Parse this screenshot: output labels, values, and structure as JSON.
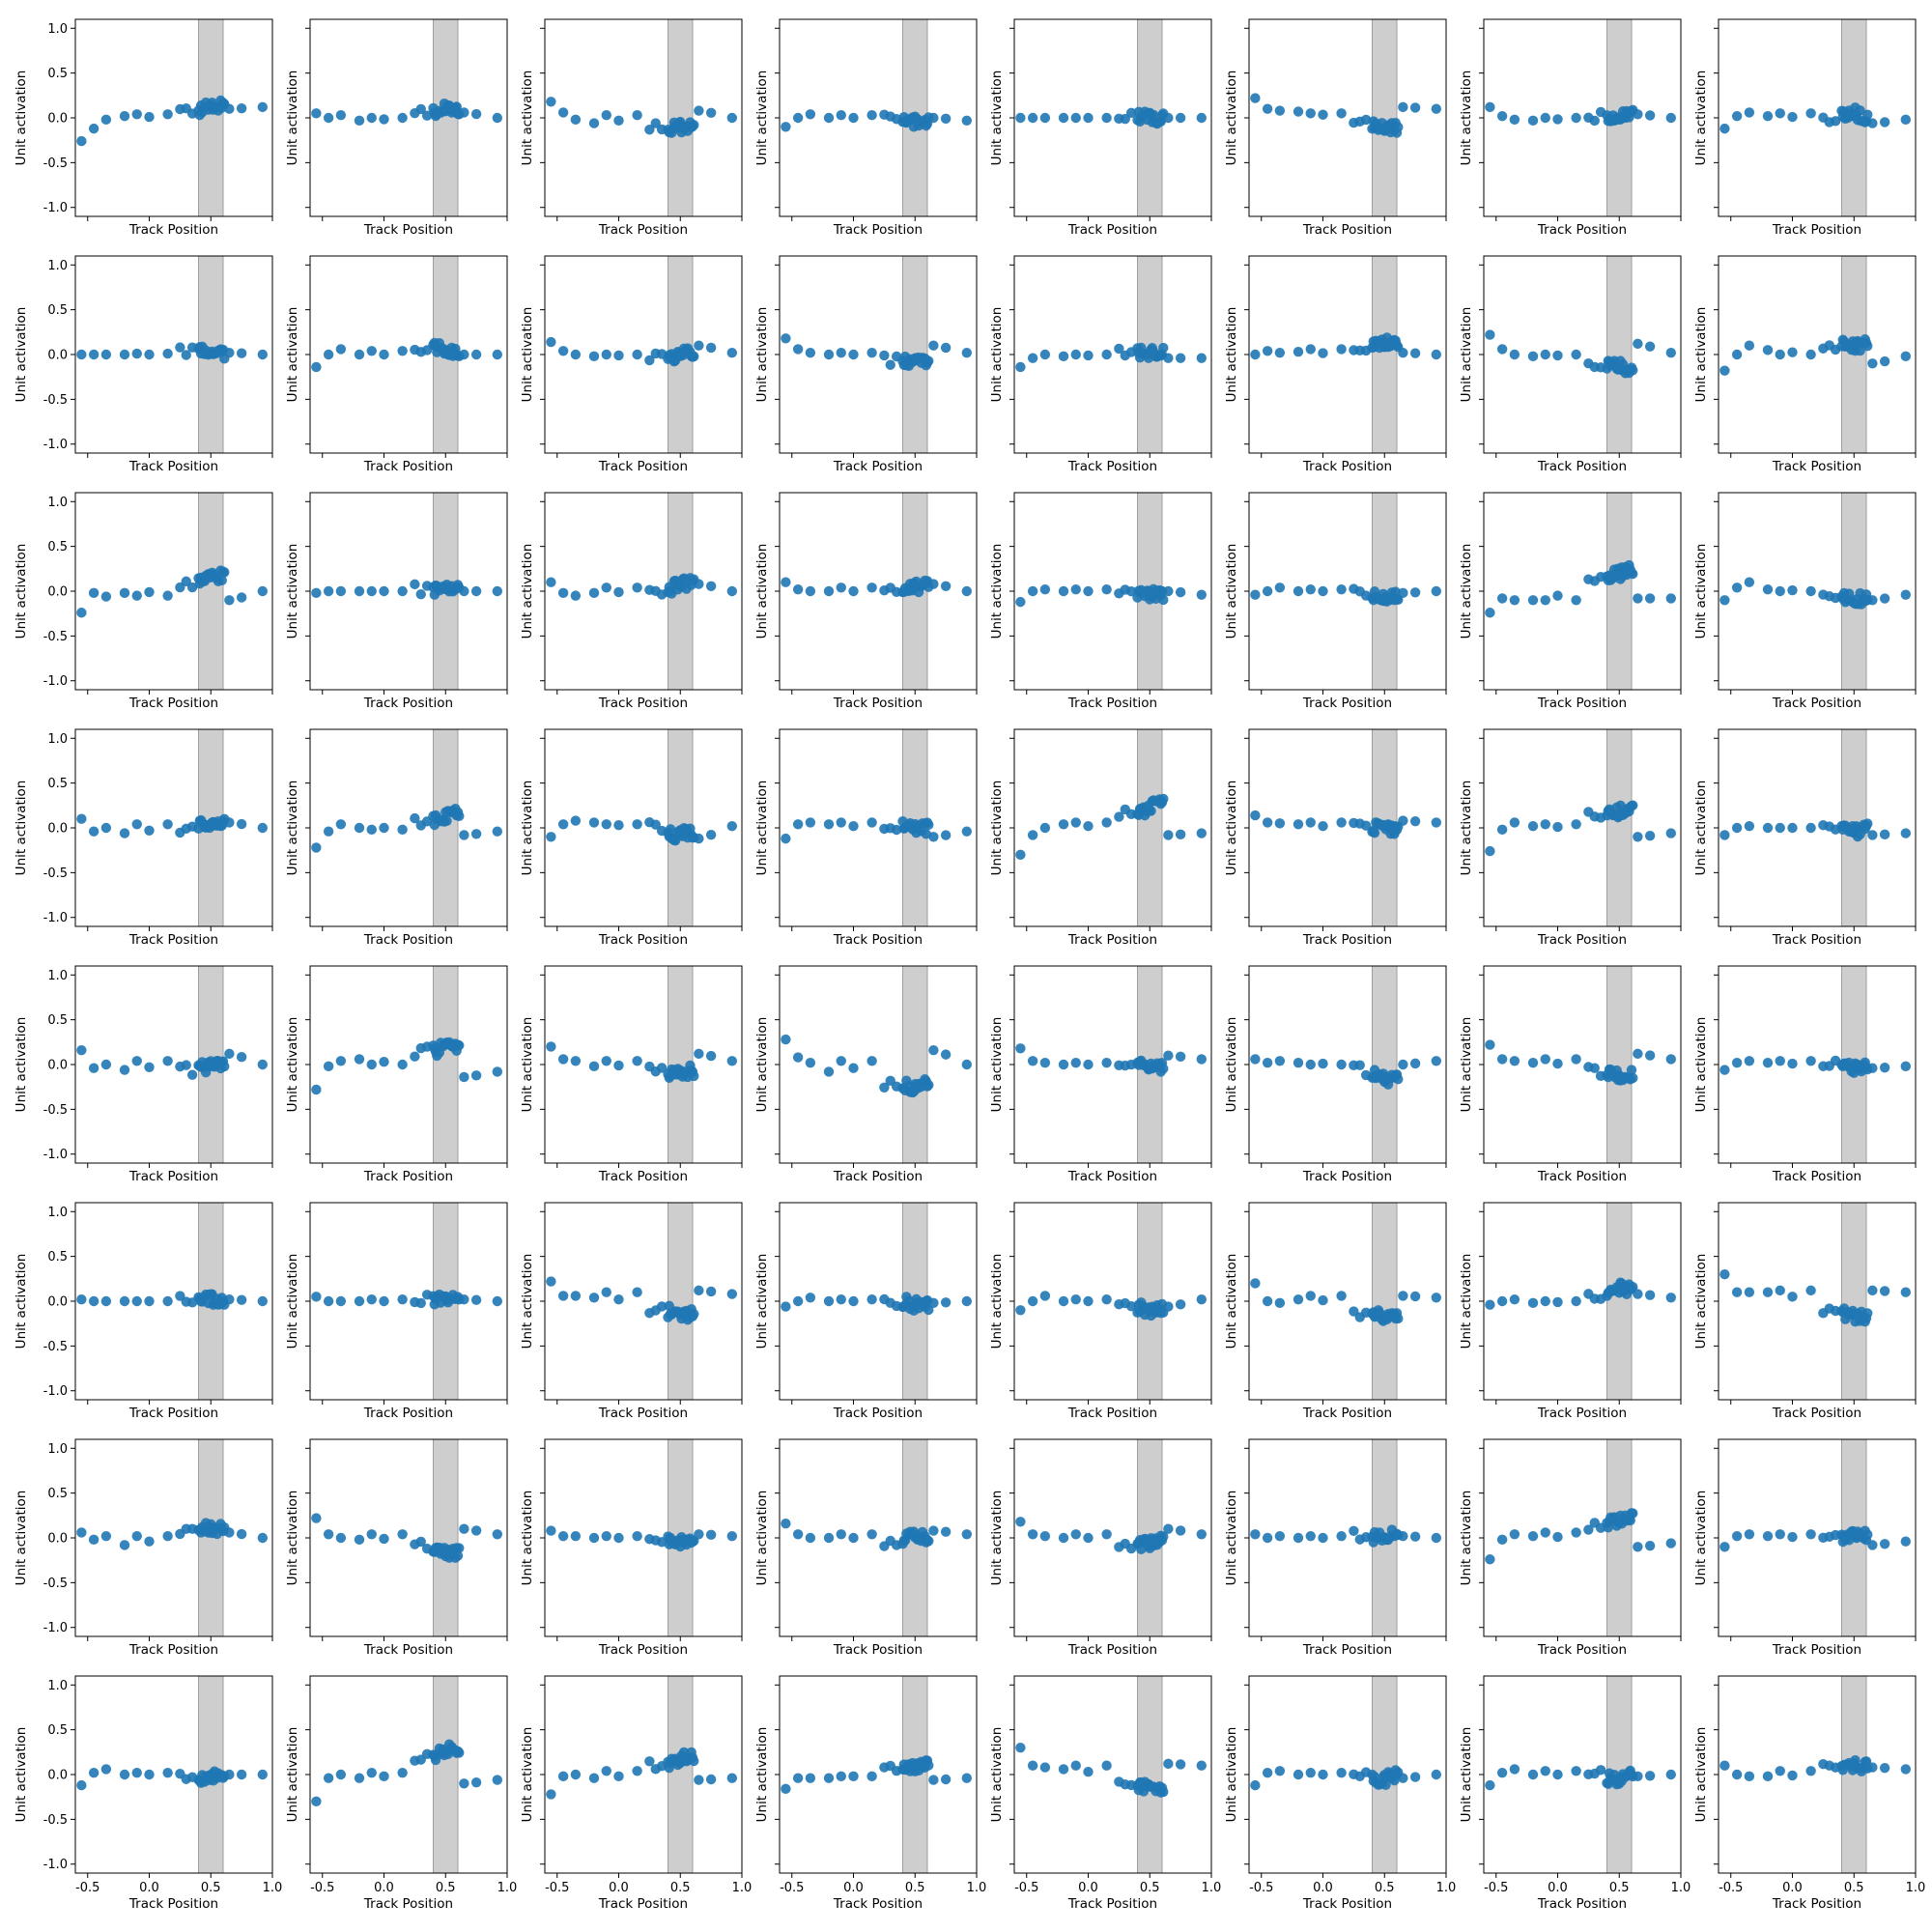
{
  "chart_data": {
    "type": "scatter",
    "grid": {
      "rows": 8,
      "cols": 8
    },
    "xlabel": "Track Position",
    "ylabel": "Unit activation",
    "xlim": [
      -0.6,
      1.0
    ],
    "ylim": [
      -1.1,
      1.1
    ],
    "xticks": [
      "-0.5",
      "0.0",
      "0.5",
      "1.0"
    ],
    "xtick_values": [
      -0.5,
      0.0,
      0.5,
      1.0
    ],
    "yticks": [
      "-1.0",
      "-0.5",
      "0.0",
      "0.5",
      "1.0"
    ],
    "ytick_values": [
      -1.0,
      -0.5,
      0.0,
      0.5,
      1.0
    ],
    "shaded_band": [
      0.4,
      0.6
    ],
    "point_color": "#1f77b4",
    "band_color": "#bdbdbd",
    "x_positions": [
      -0.55,
      -0.45,
      -0.35,
      -0.2,
      -0.1,
      0.0,
      0.15,
      0.25,
      0.3,
      0.35,
      0.4,
      0.42,
      0.45,
      0.48,
      0.5,
      0.52,
      0.55,
      0.58,
      0.6,
      0.65,
      0.75,
      0.92
    ],
    "panel_profiles": [
      [
        -0.26,
        -0.12,
        -0.02,
        0.02,
        0.04,
        0.06,
        0.09,
        0.12,
        0.14,
        0.15,
        0.1,
        0.12
      ],
      [
        0.05,
        0.0,
        0.03,
        -0.03,
        0.0,
        0.06,
        0.08,
        0.1,
        0.09,
        0.08,
        0.06,
        0.0
      ],
      [
        0.18,
        0.06,
        -0.02,
        -0.06,
        0.03,
        -0.08,
        -0.12,
        -0.1,
        -0.08,
        -0.1,
        0.08,
        0.0
      ],
      [
        -0.1,
        0.0,
        0.04,
        0.0,
        0.03,
        0.0,
        -0.02,
        -0.04,
        -0.03,
        -0.05,
        0.0,
        -0.03
      ],
      [
        0.0,
        0.0,
        0.0,
        0.0,
        0.0,
        0.0,
        0.0,
        0.0,
        0.0,
        0.0,
        0.0,
        0.0
      ],
      [
        0.22,
        0.1,
        0.08,
        0.07,
        0.05,
        -0.05,
        -0.08,
        -0.1,
        -0.11,
        -0.12,
        0.12,
        0.1
      ],
      [
        0.12,
        0.02,
        -0.02,
        -0.03,
        0.0,
        0.02,
        0.0,
        0.02,
        0.04,
        0.05,
        0.04,
        0.0
      ],
      [
        -0.12,
        0.02,
        0.06,
        0.02,
        0.05,
        0.0,
        0.04,
        0.05,
        0.03,
        0.0,
        -0.06,
        -0.02
      ],
      [
        0.0,
        0.0,
        0.0,
        0.0,
        0.01,
        0.02,
        0.02,
        0.02,
        0.02,
        0.02,
        0.02,
        0.0
      ],
      [
        -0.14,
        0.0,
        0.06,
        0.0,
        0.04,
        0.06,
        0.08,
        0.07,
        0.05,
        0.02,
        0.0,
        0.0
      ],
      [
        0.14,
        0.04,
        0.0,
        -0.02,
        0.0,
        -0.02,
        -0.04,
        -0.02,
        0.0,
        0.0,
        0.1,
        0.02
      ],
      [
        0.18,
        0.06,
        0.02,
        0.0,
        0.02,
        -0.06,
        -0.07,
        -0.08,
        -0.08,
        -0.08,
        0.1,
        0.02
      ],
      [
        -0.14,
        -0.04,
        0.0,
        -0.02,
        0.0,
        0.02,
        0.02,
        0.02,
        0.03,
        0.03,
        -0.04,
        -0.04
      ],
      [
        0.0,
        0.04,
        0.02,
        0.03,
        0.06,
        0.1,
        0.12,
        0.14,
        0.14,
        0.15,
        0.02,
        0.0
      ],
      [
        0.22,
        0.06,
        0.0,
        -0.02,
        0.0,
        -0.1,
        -0.12,
        -0.14,
        -0.16,
        -0.15,
        0.12,
        0.02
      ],
      [
        -0.18,
        0.0,
        0.1,
        0.05,
        0.0,
        0.08,
        0.1,
        0.1,
        0.1,
        0.1,
        -0.1,
        -0.02
      ],
      [
        -0.24,
        -0.02,
        -0.06,
        -0.02,
        -0.05,
        0.1,
        0.12,
        0.14,
        0.16,
        0.18,
        -0.1,
        0.0
      ],
      [
        -0.02,
        0.0,
        0.0,
        0.0,
        0.0,
        0.02,
        0.02,
        0.02,
        0.02,
        0.02,
        0.0,
        0.0
      ],
      [
        0.1,
        -0.02,
        -0.05,
        -0.02,
        0.04,
        -0.02,
        0.04,
        0.06,
        0.08,
        0.1,
        0.08,
        0.0
      ],
      [
        0.1,
        0.02,
        0.0,
        0.0,
        0.04,
        0.02,
        0.04,
        0.06,
        0.05,
        0.06,
        0.08,
        0.0
      ],
      [
        -0.12,
        0.0,
        0.02,
        0.0,
        0.02,
        -0.02,
        -0.04,
        -0.04,
        -0.04,
        -0.03,
        0.0,
        -0.04
      ],
      [
        -0.04,
        0.0,
        0.04,
        0.0,
        0.02,
        -0.02,
        -0.04,
        -0.06,
        -0.07,
        -0.06,
        -0.02,
        0.0
      ],
      [
        -0.24,
        -0.08,
        -0.1,
        -0.1,
        -0.1,
        0.1,
        0.16,
        0.2,
        0.22,
        0.24,
        -0.08,
        -0.08
      ],
      [
        -0.1,
        0.04,
        0.1,
        0.02,
        0.0,
        -0.02,
        -0.06,
        -0.08,
        -0.08,
        -0.06,
        -0.1,
        -0.04
      ],
      [
        0.1,
        -0.04,
        0.0,
        -0.06,
        0.04,
        -0.02,
        0.04,
        0.06,
        0.06,
        0.06,
        0.06,
        0.0
      ],
      [
        -0.22,
        -0.04,
        0.04,
        0.0,
        -0.02,
        0.08,
        0.1,
        0.12,
        0.14,
        0.16,
        -0.08,
        -0.04
      ],
      [
        -0.1,
        0.04,
        0.08,
        0.06,
        0.04,
        0.02,
        -0.06,
        -0.08,
        -0.07,
        -0.06,
        -0.12,
        0.02
      ],
      [
        -0.12,
        0.04,
        0.06,
        0.04,
        0.06,
        0.02,
        0.02,
        0.0,
        0.0,
        0.0,
        -0.1,
        -0.04
      ],
      [
        -0.3,
        -0.08,
        0.0,
        0.04,
        0.06,
        0.16,
        0.18,
        0.2,
        0.24,
        0.26,
        -0.08,
        -0.06
      ],
      [
        0.14,
        0.06,
        0.05,
        0.04,
        0.06,
        0.0,
        0.0,
        0.0,
        -0.02,
        -0.01,
        0.08,
        0.06
      ],
      [
        -0.26,
        -0.02,
        0.06,
        0.02,
        0.04,
        0.12,
        0.16,
        0.18,
        0.2,
        0.2,
        -0.1,
        -0.06
      ],
      [
        -0.08,
        0.0,
        0.02,
        0.0,
        0.0,
        0.0,
        -0.02,
        -0.04,
        -0.03,
        -0.02,
        -0.08,
        -0.06
      ],
      [
        0.16,
        -0.04,
        0.0,
        -0.06,
        0.04,
        -0.06,
        -0.04,
        -0.02,
        0.0,
        0.0,
        0.12,
        0.0
      ],
      [
        -0.28,
        -0.02,
        0.04,
        0.06,
        0.0,
        0.14,
        0.16,
        0.18,
        0.2,
        0.22,
        -0.14,
        -0.08
      ],
      [
        0.2,
        0.06,
        0.04,
        -0.02,
        0.04,
        -0.06,
        -0.08,
        -0.1,
        -0.08,
        -0.06,
        0.12,
        0.04
      ],
      [
        0.28,
        0.08,
        0.02,
        -0.08,
        0.04,
        -0.2,
        -0.24,
        -0.26,
        -0.24,
        -0.2,
        0.16,
        0.0
      ],
      [
        0.18,
        0.04,
        0.02,
        0.0,
        0.02,
        -0.02,
        0.0,
        -0.02,
        -0.04,
        -0.02,
        0.1,
        0.06
      ],
      [
        0.06,
        0.02,
        0.04,
        0.02,
        0.0,
        -0.06,
        -0.1,
        -0.14,
        -0.16,
        -0.16,
        0.0,
        0.04
      ],
      [
        0.22,
        0.06,
        0.04,
        0.02,
        0.06,
        -0.08,
        -0.1,
        -0.12,
        -0.12,
        -0.12,
        0.12,
        0.06
      ],
      [
        -0.06,
        0.02,
        0.04,
        0.02,
        0.04,
        0.0,
        -0.02,
        -0.04,
        -0.04,
        -0.04,
        -0.04,
        -0.02
      ],
      [
        0.02,
        0.0,
        0.0,
        0.0,
        0.0,
        0.02,
        0.02,
        0.02,
        0.02,
        0.02,
        0.02,
        0.0
      ],
      [
        0.05,
        0.0,
        0.0,
        0.0,
        0.02,
        0.02,
        0.03,
        0.04,
        0.04,
        0.04,
        0.02,
        0.0
      ],
      [
        0.22,
        0.06,
        0.06,
        0.04,
        0.1,
        -0.1,
        -0.12,
        -0.14,
        -0.15,
        -0.14,
        0.12,
        0.08
      ],
      [
        -0.06,
        0.0,
        0.04,
        0.0,
        0.02,
        -0.02,
        -0.02,
        -0.04,
        -0.04,
        -0.04,
        -0.02,
        0.0
      ],
      [
        -0.1,
        0.0,
        0.06,
        0.0,
        0.02,
        -0.06,
        -0.08,
        -0.1,
        -0.1,
        -0.08,
        -0.06,
        0.02
      ],
      [
        0.2,
        0.0,
        -0.02,
        0.02,
        0.06,
        -0.12,
        -0.14,
        -0.16,
        -0.18,
        -0.16,
        0.06,
        0.04
      ],
      [
        -0.04,
        0.0,
        0.02,
        -0.02,
        0.0,
        0.08,
        0.1,
        0.14,
        0.14,
        0.16,
        0.08,
        0.04
      ],
      [
        0.3,
        0.1,
        0.1,
        0.1,
        0.12,
        -0.12,
        -0.14,
        -0.16,
        -0.18,
        -0.2,
        0.12,
        0.1
      ],
      [
        0.06,
        -0.02,
        0.02,
        -0.08,
        0.02,
        0.06,
        0.08,
        0.1,
        0.1,
        0.1,
        0.06,
        0.0
      ],
      [
        0.22,
        0.04,
        0.0,
        -0.02,
        0.04,
        -0.1,
        -0.14,
        -0.16,
        -0.18,
        -0.18,
        0.1,
        0.04
      ],
      [
        0.08,
        0.02,
        0.02,
        0.0,
        0.02,
        -0.02,
        -0.03,
        -0.04,
        -0.05,
        -0.05,
        0.04,
        0.02
      ],
      [
        0.16,
        0.04,
        0.0,
        0.0,
        0.04,
        -0.04,
        -0.02,
        0.0,
        0.0,
        0.0,
        0.08,
        0.04
      ],
      [
        0.18,
        0.04,
        0.02,
        0.0,
        0.04,
        -0.06,
        -0.08,
        -0.06,
        -0.04,
        -0.04,
        0.1,
        0.04
      ],
      [
        0.04,
        0.0,
        0.02,
        0.0,
        0.02,
        0.02,
        0.02,
        0.02,
        0.03,
        0.03,
        0.02,
        0.0
      ],
      [
        -0.24,
        -0.02,
        0.04,
        0.02,
        0.06,
        0.14,
        0.16,
        0.18,
        0.2,
        0.22,
        -0.1,
        -0.06
      ],
      [
        -0.1,
        0.02,
        0.04,
        0.02,
        0.04,
        0.0,
        0.0,
        0.02,
        0.02,
        0.02,
        -0.08,
        -0.04
      ],
      [
        -0.12,
        0.02,
        0.06,
        0.0,
        0.02,
        0.0,
        -0.04,
        -0.04,
        -0.02,
        0.0,
        0.0,
        0.0
      ],
      [
        -0.3,
        -0.04,
        0.0,
        -0.04,
        0.02,
        0.18,
        0.22,
        0.26,
        0.28,
        0.3,
        -0.1,
        -0.06
      ],
      [
        -0.22,
        -0.02,
        0.0,
        -0.04,
        0.04,
        0.12,
        0.14,
        0.16,
        0.18,
        0.2,
        -0.06,
        -0.04
      ],
      [
        -0.16,
        -0.04,
        -0.04,
        -0.04,
        -0.02,
        0.06,
        0.08,
        0.08,
        0.1,
        0.1,
        -0.06,
        -0.04
      ],
      [
        0.3,
        0.1,
        0.08,
        0.06,
        0.1,
        -0.1,
        -0.12,
        -0.14,
        -0.15,
        -0.16,
        0.12,
        0.1
      ],
      [
        -0.12,
        0.02,
        0.04,
        0.0,
        0.02,
        -0.02,
        -0.04,
        -0.06,
        -0.04,
        -0.02,
        -0.04,
        0.0
      ],
      [
        -0.12,
        0.02,
        0.06,
        0.0,
        0.04,
        0.0,
        -0.04,
        -0.06,
        -0.04,
        -0.02,
        -0.02,
        0.0
      ],
      [
        0.1,
        0.0,
        -0.02,
        -0.02,
        0.04,
        0.06,
        0.08,
        0.1,
        0.1,
        0.12,
        0.08,
        0.06
      ]
    ]
  }
}
